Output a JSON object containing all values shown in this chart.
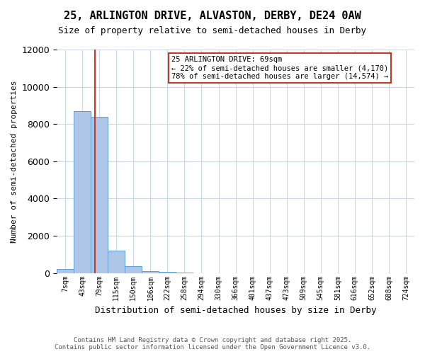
{
  "title_line1": "25, ARLINGTON DRIVE, ALVASTON, DERBY, DE24 0AW",
  "title_line2": "Size of property relative to semi-detached houses in Derby",
  "xlabel": "Distribution of semi-detached houses by size in Derby",
  "ylabel": "Number of semi-detached properties",
  "footer1": "Contains HM Land Registry data © Crown copyright and database right 2025.",
  "footer2": "Contains public sector information licensed under the Open Government Licence v3.0.",
  "bin_labels": [
    "7sqm",
    "43sqm",
    "79sqm",
    "115sqm",
    "150sqm",
    "186sqm",
    "222sqm",
    "258sqm",
    "294sqm",
    "330sqm",
    "366sqm",
    "401sqm",
    "437sqm",
    "473sqm",
    "509sqm",
    "545sqm",
    "581sqm",
    "616sqm",
    "652sqm",
    "688sqm",
    "724sqm"
  ],
  "bar_values": [
    200,
    8700,
    8400,
    1200,
    350,
    100,
    80,
    20,
    5,
    2,
    1,
    1,
    0,
    0,
    0,
    0,
    0,
    0,
    0,
    0,
    0
  ],
  "bar_color": "#aec6e8",
  "bar_edge_color": "#5a9fd4",
  "property_bin_index": 1.74,
  "vline_color": "#c0392b",
  "annotation_title": "25 ARLINGTON DRIVE: 69sqm",
  "annotation_line2": "← 22% of semi-detached houses are smaller (4,170)",
  "annotation_line3": "78% of semi-detached houses are larger (14,574) →",
  "annotation_box_color": "#c0392b",
  "ylim": [
    0,
    12000
  ],
  "yticks": [
    0,
    2000,
    4000,
    6000,
    8000,
    10000,
    12000
  ],
  "background_color": "#ffffff",
  "grid_color": "#c8d8e8"
}
